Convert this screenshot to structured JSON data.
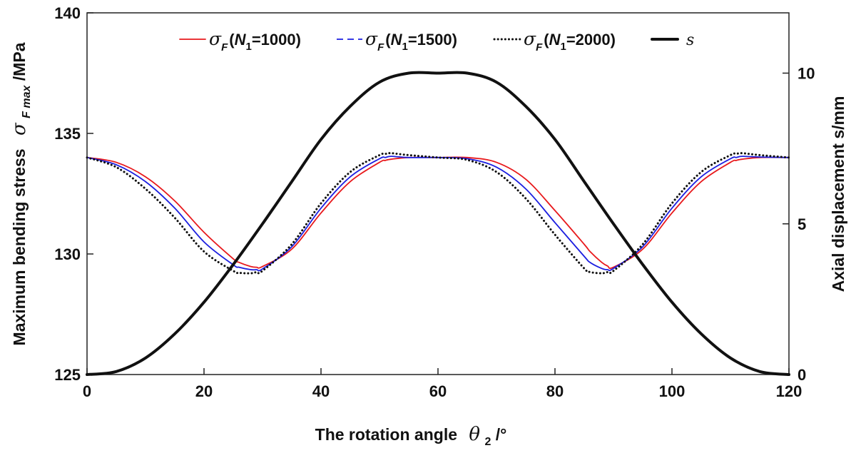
{
  "chart_data": {
    "type": "line",
    "xlabel": "The rotation angle",
    "xlabel_symbol": "θ",
    "xlabel_subscript": "2",
    "xlabel_unit": "/°",
    "ylabel_left": "Maximum bending stress",
    "ylabel_left_symbol": "σ",
    "ylabel_left_subscript": "F max",
    "ylabel_left_unit": "/MPa",
    "ylabel_right": "Axial displacement s/mm",
    "xlim": [
      0,
      120
    ],
    "ylim_left": [
      125,
      140
    ],
    "ylim_right": [
      0,
      12
    ],
    "x_ticks": [
      "0",
      "20",
      "40",
      "60",
      "80",
      "100",
      "120"
    ],
    "y_left_ticks": [
      "125",
      "130",
      "135",
      "140"
    ],
    "y_right_ticks": [
      "0",
      "5",
      "10"
    ],
    "grid": false,
    "legend_position": "top",
    "x": [
      0,
      5,
      10,
      15,
      20,
      25,
      26,
      28,
      29,
      30,
      35,
      40,
      45,
      50,
      51,
      52,
      55,
      60,
      65,
      70,
      75,
      80,
      85,
      86,
      88,
      89,
      90,
      95,
      100,
      105,
      110,
      111,
      112,
      115,
      120
    ],
    "series": [
      {
        "name": "σF(N1=1000)",
        "legend_symbol": "σ",
        "legend_sub": "F",
        "legend_open": "(",
        "legend_var": "N",
        "legend_var_sub": "1",
        "legend_rest": "=1000)",
        "axis": "left",
        "color": "#e8191c",
        "style": "solid",
        "values": [
          134.0,
          133.8,
          133.2,
          132.2,
          130.9,
          129.8,
          129.65,
          129.48,
          129.45,
          129.48,
          130.2,
          131.7,
          133.0,
          133.8,
          133.88,
          133.93,
          134.0,
          134.0,
          134.0,
          133.8,
          133.1,
          131.8,
          130.4,
          130.1,
          129.65,
          129.5,
          129.45,
          130.2,
          131.7,
          133.0,
          133.8,
          133.88,
          133.93,
          134.0,
          134.0
        ]
      },
      {
        "name": "σF(N1=1500)",
        "legend_symbol": "σ",
        "legend_sub": "F",
        "legend_open": "(",
        "legend_var": "N",
        "legend_var_sub": "1",
        "legend_rest": "=1500)",
        "axis": "left",
        "color": "#1b1ee0",
        "style": "solid",
        "values": [
          134.0,
          133.7,
          133.0,
          131.9,
          130.5,
          129.55,
          129.45,
          129.35,
          129.35,
          129.38,
          130.3,
          131.9,
          133.2,
          133.95,
          134.0,
          134.05,
          134.0,
          134.0,
          133.95,
          133.6,
          132.7,
          131.3,
          129.9,
          129.65,
          129.4,
          129.35,
          129.4,
          130.3,
          131.9,
          133.2,
          133.95,
          134.0,
          134.05,
          134.02,
          134.0
        ]
      },
      {
        "name": "σF(N1=2000)",
        "legend_symbol": "σ",
        "legend_sub": "F",
        "legend_open": "(",
        "legend_var": "N",
        "legend_var_sub": "1",
        "legend_rest": "=2000)",
        "axis": "left",
        "color": "#111111",
        "style": "dotted",
        "values": [
          134.0,
          133.6,
          132.7,
          131.5,
          130.1,
          129.3,
          129.22,
          129.2,
          129.25,
          129.3,
          130.4,
          132.1,
          133.4,
          134.1,
          134.15,
          134.18,
          134.1,
          134.0,
          133.9,
          133.4,
          132.3,
          130.8,
          129.4,
          129.25,
          129.2,
          129.25,
          129.3,
          130.4,
          132.1,
          133.4,
          134.1,
          134.15,
          134.18,
          134.1,
          134.0
        ]
      },
      {
        "name": "s",
        "legend_symbol": "s",
        "axis": "right",
        "color": "#111111",
        "style": "solid-thick",
        "x": [
          0,
          5,
          10,
          15,
          20,
          25,
          30,
          35,
          40,
          45,
          50,
          55,
          60,
          65,
          70,
          75,
          80,
          85,
          90,
          95,
          100,
          105,
          110,
          115,
          120
        ],
        "values": [
          0,
          0.1,
          0.55,
          1.35,
          2.4,
          3.65,
          5.0,
          6.4,
          7.8,
          8.9,
          9.7,
          10.0,
          10.0,
          10.0,
          9.7,
          8.9,
          7.8,
          6.4,
          5.0,
          3.65,
          2.4,
          1.35,
          0.55,
          0.1,
          0
        ]
      }
    ]
  }
}
